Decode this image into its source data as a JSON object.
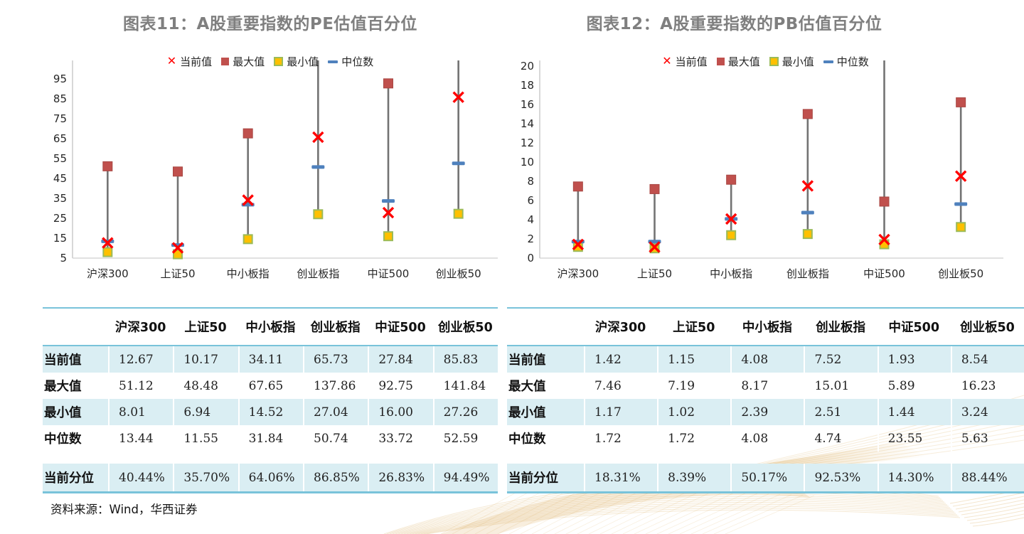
{
  "panels": [
    {
      "title": "图表11：A股重要指数的PE估值百分位",
      "chart_data": {
        "type": "scatter",
        "subtype": "high-low-marker",
        "categories": [
          "沪深300",
          "上证50",
          "中小板指",
          "创业板指",
          "中证500",
          "创业板50"
        ],
        "y_ticks": [
          5,
          15,
          25,
          35,
          45,
          55,
          65,
          75,
          85,
          95
        ],
        "y_axis": {
          "min": 5,
          "top_tick": 95
        },
        "grid": "off",
        "legend_position": "top-center",
        "series": [
          {
            "name": "当前值",
            "marker": "x",
            "values": [
              12.67,
              10.17,
              34.11,
              65.73,
              27.84,
              85.83
            ]
          },
          {
            "name": "最大值",
            "marker": "square",
            "values": [
              51.12,
              48.48,
              67.65,
              137.86,
              92.75,
              141.84
            ]
          },
          {
            "name": "最小值",
            "marker": "square-outline",
            "values": [
              8.01,
              6.94,
              14.52,
              27.04,
              16.0,
              27.26
            ]
          },
          {
            "name": "中位数",
            "marker": "dash",
            "values": [
              13.44,
              11.55,
              31.84,
              50.74,
              33.72,
              52.59
            ]
          }
        ]
      },
      "table": {
        "columns": [
          "沪深300",
          "上证50",
          "中小板指",
          "创业板指",
          "中证500",
          "创业板50"
        ],
        "rows": [
          {
            "label": "当前值",
            "values": [
              "12.67",
              "10.17",
              "34.11",
              "65.73",
              "27.84",
              "85.83"
            ]
          },
          {
            "label": "最大值",
            "values": [
              "51.12",
              "48.48",
              "67.65",
              "137.86",
              "92.75",
              "141.84"
            ]
          },
          {
            "label": "最小值",
            "values": [
              "8.01",
              "6.94",
              "14.52",
              "27.04",
              "16.00",
              "27.26"
            ]
          },
          {
            "label": "中位数",
            "values": [
              "13.44",
              "11.55",
              "31.84",
              "50.74",
              "33.72",
              "52.59"
            ]
          },
          {
            "label": "当前分位",
            "values": [
              "40.44%",
              "35.70%",
              "64.06%",
              "86.85%",
              "26.83%",
              "94.49%"
            ]
          }
        ]
      }
    },
    {
      "title": "图表12：A股重要指数的PB估值百分位",
      "chart_data": {
        "type": "scatter",
        "subtype": "high-low-marker",
        "categories": [
          "沪深300",
          "上证50",
          "中小板指",
          "创业板指",
          "中证500",
          "创业板50"
        ],
        "y_ticks": [
          0,
          2,
          4,
          6,
          8,
          10,
          12,
          14,
          16,
          18,
          20
        ],
        "y_axis": {
          "min": 0,
          "top_tick": 20
        },
        "grid": "off",
        "legend_position": "top-center",
        "series": [
          {
            "name": "当前值",
            "marker": "x",
            "values": [
              1.42,
              1.15,
              4.08,
              7.52,
              1.93,
              8.54
            ]
          },
          {
            "name": "最大值",
            "marker": "square",
            "values": [
              7.46,
              7.19,
              8.17,
              15.01,
              5.89,
              16.23
            ]
          },
          {
            "name": "最小值",
            "marker": "square-outline",
            "values": [
              1.17,
              1.02,
              2.39,
              2.51,
              1.44,
              3.24
            ]
          },
          {
            "name": "中位数",
            "marker": "dash",
            "values": [
              1.72,
              1.72,
              4.08,
              4.74,
              23.55,
              5.63
            ]
          }
        ]
      },
      "table": {
        "columns": [
          "沪深300",
          "上证50",
          "中小板指",
          "创业板指",
          "中证500",
          "创业板50"
        ],
        "rows": [
          {
            "label": "当前值",
            "values": [
              "1.42",
              "1.15",
              "4.08",
              "7.52",
              "1.93",
              "8.54"
            ]
          },
          {
            "label": "最大值",
            "values": [
              "7.46",
              "7.19",
              "8.17",
              "15.01",
              "5.89",
              "16.23"
            ]
          },
          {
            "label": "最小值",
            "values": [
              "1.17",
              "1.02",
              "2.39",
              "2.51",
              "1.44",
              "3.24"
            ]
          },
          {
            "label": "中位数",
            "values": [
              "1.72",
              "1.72",
              "4.08",
              "4.74",
              "23.55",
              "5.63"
            ]
          },
          {
            "label": "当前分位",
            "values": [
              "18.31%",
              "8.39%",
              "50.17%",
              "92.53%",
              "14.30%",
              "88.44%"
            ]
          }
        ]
      }
    }
  ],
  "source_note": "资料来源：Wind，华西证券",
  "colors": {
    "title": "#7F7F7F",
    "axis_text": "#262626",
    "axis_line": "#BFBFBF",
    "current_x": "#FF0000",
    "max_square": "#C0504D",
    "max_square_border": "#A84743",
    "min_fill": "#FFC000",
    "min_border": "#9BBB59",
    "median_dash": "#4F81BD",
    "hilo_line": "#737373",
    "table_stripe": "#DAEEF3",
    "table_border": "#79C3DA",
    "decor_gold": "#D29A3A",
    "decor_gold_light": "#E9C893"
  }
}
